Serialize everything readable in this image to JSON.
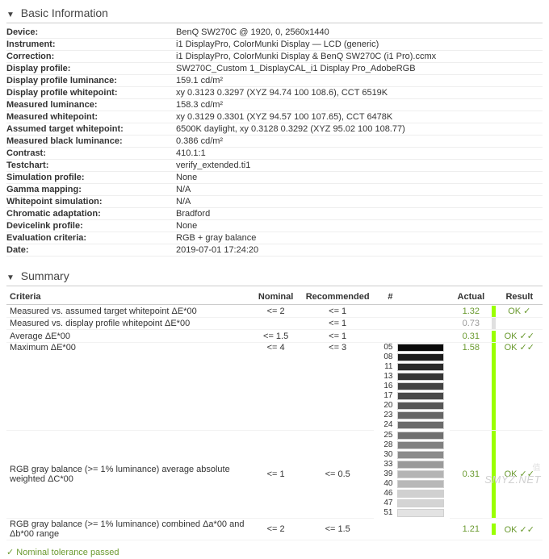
{
  "sections": {
    "basic_info": {
      "title": "Basic Information"
    },
    "summary": {
      "title": "Summary"
    }
  },
  "info_rows": [
    {
      "label": "Device:",
      "value": "BenQ SW270C @ 1920, 0, 2560x1440"
    },
    {
      "label": "Instrument:",
      "value": "i1 DisplayPro, ColorMunki Display — LCD (generic)"
    },
    {
      "label": "Correction:",
      "value": "i1 DisplayPro, ColorMunki Display & BenQ SW270C (i1 Pro).ccmx"
    },
    {
      "label": "Display profile:",
      "value": "SW270C_Custom 1_DisplayCAL_i1 Display Pro_AdobeRGB"
    },
    {
      "label": "Display profile luminance:",
      "value": "159.1 cd/m²"
    },
    {
      "label": "Display profile whitepoint:",
      "value": "xy 0.3123 0.3297 (XYZ 94.74 100 108.6), CCT 6519K"
    },
    {
      "label": "Measured luminance:",
      "value": "158.3 cd/m²"
    },
    {
      "label": "Measured whitepoint:",
      "value": "xy 0.3129 0.3301 (XYZ 94.57 100 107.65), CCT 6478K"
    },
    {
      "label": "Assumed target whitepoint:",
      "value": "6500K daylight, xy 0.3128 0.3292 (XYZ 95.02 100 108.77)"
    },
    {
      "label": "Measured black luminance:",
      "value": "0.386 cd/m²"
    },
    {
      "label": "Contrast:",
      "value": "410.1:1"
    },
    {
      "label": "Testchart:",
      "value": "verify_extended.ti1"
    },
    {
      "label": "Simulation profile:",
      "value": "None"
    },
    {
      "label": "Gamma mapping:",
      "value": "N/A"
    },
    {
      "label": "Whitepoint simulation:",
      "value": "N/A"
    },
    {
      "label": "Chromatic adaptation:",
      "value": "Bradford"
    },
    {
      "label": "Devicelink profile:",
      "value": "None"
    },
    {
      "label": "Evaluation criteria:",
      "value": "RGB + gray balance"
    },
    {
      "label": "Date:",
      "value": "2019-07-01 17:24:20"
    }
  ],
  "summary_headers": {
    "criteria": "Criteria",
    "nominal": "Nominal",
    "recommended": "Recommended",
    "hash": "#",
    "actual": "Actual",
    "result": "Result"
  },
  "summary_rows": [
    {
      "criteria": "Measured vs. assumed target whitepoint ΔE*00",
      "nominal": "<= 2",
      "recommended": "<= 1",
      "actual": "1.32",
      "actual_class": "ok",
      "result": "OK ✓",
      "bar": "ok"
    },
    {
      "criteria": "Measured vs. display profile whitepoint ΔE*00",
      "nominal": "",
      "recommended": "<= 1",
      "actual": "0.73",
      "actual_class": "gray",
      "result": "",
      "bar": "gray"
    },
    {
      "criteria": "Average ΔE*00",
      "nominal": "<= 1.5",
      "recommended": "<= 1",
      "actual": "0.31",
      "actual_class": "ok",
      "result": "OK ✓✓",
      "bar": "ok"
    }
  ],
  "max_row": {
    "criteria": "Maximum ΔE*00",
    "nominal": "<= 4",
    "recommended": "<= 3",
    "actual": "1.58",
    "result": "OK ✓✓",
    "patches": [
      {
        "idx": "05",
        "c": "#0a0a0a"
      },
      {
        "idx": "08",
        "c": "#1c1c1c"
      },
      {
        "idx": "11",
        "c": "#2b2b2b"
      },
      {
        "idx": "13",
        "c": "#363636"
      },
      {
        "idx": "16",
        "c": "#434343"
      },
      {
        "idx": "17",
        "c": "#494949"
      },
      {
        "idx": "20",
        "c": "#575757"
      },
      {
        "idx": "23",
        "c": "#666666"
      },
      {
        "idx": "24",
        "c": "#6b6b6b"
      }
    ]
  },
  "gray_row": {
    "criteria": "RGB gray balance (>= 1% luminance) average absolute weighted ΔC*00",
    "nominal": "<= 1",
    "recommended": "<= 0.5",
    "actual": "0.31",
    "result": "OK ✓✓",
    "patches": [
      {
        "idx": "25",
        "c": "#707070"
      },
      {
        "idx": "28",
        "c": "#808080"
      },
      {
        "idx": "30",
        "c": "#8b8b8b"
      },
      {
        "idx": "33",
        "c": "#9a9a9a"
      },
      {
        "idx": "39",
        "c": "#b4b4b4"
      },
      {
        "idx": "40",
        "c": "#b8b8b8"
      },
      {
        "idx": "46",
        "c": "#d0d0d0"
      },
      {
        "idx": "47",
        "c": "#d4d4d4"
      },
      {
        "idx": "51",
        "c": "#e3e3e3"
      }
    ]
  },
  "combined_row": {
    "criteria": "RGB gray balance (>= 1% luminance) combined Δa*00 and Δb*00 range",
    "nominal": "<= 2",
    "recommended": "<= 1.5",
    "actual": "1.21",
    "result": "OK ✓✓"
  },
  "footnote": "✓ Nominal tolerance passed",
  "watermark1": "值",
  "watermark2": "SMYZ.NET"
}
